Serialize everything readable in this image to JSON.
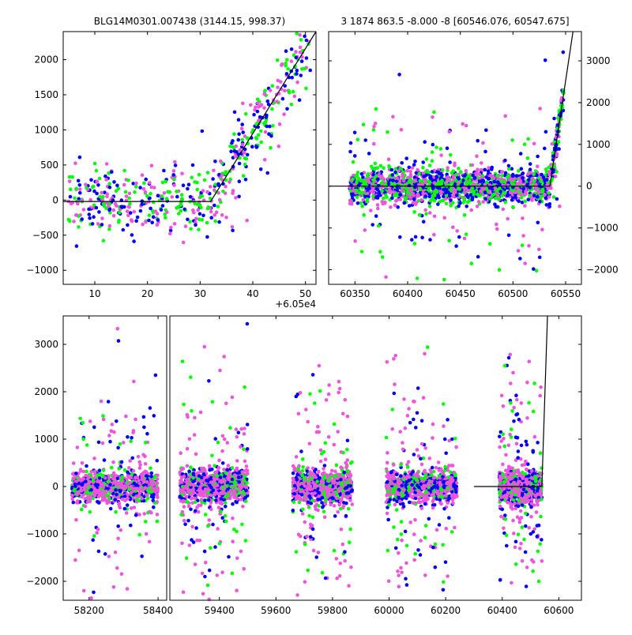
{
  "colors": {
    "green": "#00ff00",
    "blue": "#0000ff",
    "magenta": "#ee55dd",
    "model": "#000000"
  },
  "chart_data": [
    {
      "id": "top-left",
      "type": "scatter",
      "title": "BLG14M0301.007438 (3144.15, 998.37)",
      "x_offset_label": "+6.05e4",
      "xlim": [
        4,
        52
      ],
      "ylim": [
        -1200,
        2400
      ],
      "xticks": [
        10,
        20,
        30,
        40,
        50
      ],
      "yticks": [
        -1000,
        -500,
        0,
        500,
        1000,
        1500,
        2000
      ],
      "xtick_labels": [
        "10",
        "20",
        "30",
        "40",
        "50"
      ],
      "ytick_labels": [
        "−1000",
        "−500",
        "0",
        "500",
        "1000",
        "1500",
        "2000"
      ],
      "model": {
        "x": [
          4,
          32,
          52
        ],
        "y": [
          -20,
          -20,
          2400
        ]
      }
    },
    {
      "id": "top-right",
      "type": "scatter",
      "title": "3 1874 863.5 -8.000 -8 [60546.076, 60547.675]",
      "xlim": [
        60325,
        60565
      ],
      "ylim": [
        -2350,
        3700
      ],
      "xticks": [
        60350,
        60400,
        60450,
        60500,
        60550
      ],
      "yticks": [
        -2000,
        -1000,
        0,
        1000,
        2000,
        3000
      ],
      "xtick_labels": [
        "60350",
        "60400",
        "60450",
        "60500",
        "60550"
      ],
      "ytick_labels": [
        "−2000",
        "−1000",
        "0",
        "1000",
        "2000",
        "3000"
      ],
      "yaxis_side": "right",
      "model": {
        "x": [
          60325,
          60535,
          60557
        ],
        "y": [
          0,
          0,
          3700
        ]
      }
    },
    {
      "id": "bottom",
      "type": "scatter",
      "broken_axis": true,
      "xlim_left": [
        58125,
        58425
      ],
      "xlim_right": [
        59225,
        60680
      ],
      "ylim": [
        -2400,
        3600
      ],
      "xticks_left": [
        58200,
        58400
      ],
      "xticks_right": [
        59400,
        59600,
        59800,
        60000,
        60200,
        60400,
        60600
      ],
      "xtick_labels_left": [
        "58200",
        "58400"
      ],
      "xtick_labels_right": [
        "59400",
        "59600",
        "59800",
        "60000",
        "60200",
        "60400",
        "60600"
      ],
      "yticks": [
        -2000,
        -1000,
        0,
        1000,
        2000,
        3000
      ],
      "ytick_labels": [
        "−2000",
        "−1000",
        "0",
        "1000",
        "2000",
        "3000"
      ],
      "seasons": [
        [
          58150,
          58400
        ],
        [
          59260,
          59500
        ],
        [
          59660,
          59870
        ],
        [
          59990,
          60240
        ],
        [
          60390,
          60540
        ]
      ],
      "model": {
        "x": [
          60300,
          60540,
          60560
        ],
        "y": [
          0,
          0,
          3600
        ]
      }
    }
  ]
}
